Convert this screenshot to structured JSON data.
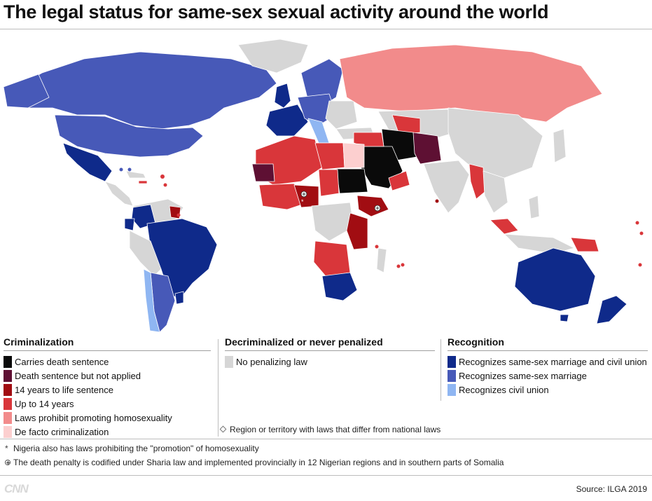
{
  "title": "The legal status for same-sex sexual activity around the world",
  "colors": {
    "death": "#0a0a0a",
    "death_not_applied": "#5e1033",
    "life": "#a10d12",
    "up_to_14": "#d9363a",
    "promotion": "#f28b8b",
    "de_facto": "#fccfcf",
    "no_law": "#d6d6d6",
    "marriage_civil": "#0f2a8a",
    "marriage": "#4759b8",
    "civil_union": "#8fb6f2",
    "water": "#ffffff"
  },
  "legend": {
    "criminalization": {
      "heading": "Criminalization",
      "items": [
        {
          "label": "Carries death sentence",
          "color": "#0a0a0a"
        },
        {
          "label": "Death sentence but not applied",
          "color": "#5e1033"
        },
        {
          "label": "14 years to life sentence",
          "color": "#a10d12"
        },
        {
          "label": "Up to 14 years",
          "color": "#d9363a"
        },
        {
          "label": "Laws prohibit promoting homosexuality",
          "color": "#f28b8b"
        },
        {
          "label": "De facto criminalization",
          "color": "#fccfcf"
        }
      ]
    },
    "decriminalized": {
      "heading": "Decriminalized or never penalized",
      "items": [
        {
          "label": "No penalizing law",
          "color": "#d6d6d6"
        }
      ]
    },
    "recognition": {
      "heading": "Recognition",
      "items": [
        {
          "label": "Recognizes same-sex marriage and civil union",
          "color": "#0f2a8a"
        },
        {
          "label": "Recognizes same-sex marriage",
          "color": "#4759b8"
        },
        {
          "label": "Recognizes civil union",
          "color": "#8fb6f2"
        }
      ]
    }
  },
  "region_note": "Region or territory with laws that differ from national laws",
  "footnotes": {
    "asterisk_mark": "*",
    "asterisk": "Nigeria also has laws prohibiting the \"promotion\" of homosexuality",
    "plus": "The death penalty is codified under Sharia law and implemented provincially in 12 Nigerian regions and in southern parts of Somalia"
  },
  "logo": "CNN",
  "source": "Source: ILGA 2019"
}
